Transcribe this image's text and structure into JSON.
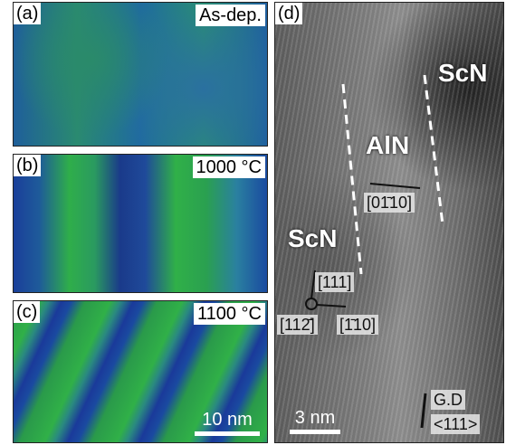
{
  "panels": [
    {
      "label": "(a)",
      "caption": "As-dep."
    },
    {
      "label": "(b)",
      "caption": "1000 °C"
    },
    {
      "label": "(c)",
      "caption": "1100 °C",
      "scale_bar": "10 nm"
    },
    {
      "label": "(d)",
      "annotations": {
        "scn_top": "ScN",
        "aln": "AlN",
        "direction": "[01̄10]",
        "scn_left": "ScN",
        "dir_111": "[111]",
        "dir_112": "[112̄]",
        "dir_110": "[1̄10]",
        "growth": "G.D",
        "growth_dir": "<111>"
      },
      "scale_bar": "3 nm"
    }
  ]
}
